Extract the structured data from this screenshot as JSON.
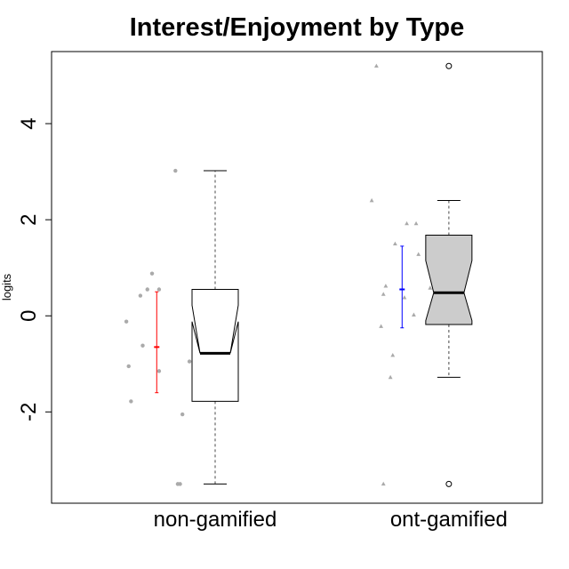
{
  "chart_data": {
    "type": "box",
    "title": "Interest/Enjoyment by Type",
    "xlabel": "",
    "ylabel": "logits",
    "ylim": [
      -3.9,
      5.5
    ],
    "yticks": [
      -2,
      0,
      2,
      4
    ],
    "categories": [
      "non-gamified",
      "ont-gamified"
    ],
    "boxes": [
      {
        "name": "non-gamified",
        "min": -3.5,
        "q1": -1.78,
        "median": -0.78,
        "q3": 0.55,
        "max": 3.02,
        "notch_low": -0.12,
        "notch_high": 0.22,
        "fill": "#ffffff",
        "outliers": []
      },
      {
        "name": "ont-gamified",
        "min": -1.28,
        "q1": -0.18,
        "median": 0.48,
        "q3": 1.68,
        "max": 2.4,
        "notch_low": -0.1,
        "notch_high": 1.15,
        "fill": "#cccccc",
        "outliers": [
          -3.5,
          5.2
        ]
      }
    ],
    "jitter_points": [
      {
        "group": "non-gamified",
        "marker": "circle",
        "color": "#aaaaaa",
        "points": [
          {
            "x": 0.53,
            "y": 3.02
          },
          {
            "x": 0.43,
            "y": 0.88
          },
          {
            "x": 0.41,
            "y": 0.55
          },
          {
            "x": 0.46,
            "y": 0.55
          },
          {
            "x": 0.38,
            "y": 0.42
          },
          {
            "x": 0.32,
            "y": -0.12
          },
          {
            "x": 0.39,
            "y": -0.62
          },
          {
            "x": 0.59,
            "y": -0.95
          },
          {
            "x": 0.33,
            "y": -1.05
          },
          {
            "x": 0.46,
            "y": -1.15
          },
          {
            "x": 0.34,
            "y": -1.78
          },
          {
            "x": 0.56,
            "y": -2.05
          },
          {
            "x": 0.54,
            "y": -3.5
          },
          {
            "x": 0.55,
            "y": -3.5
          }
        ]
      },
      {
        "group": "ont-gamified",
        "marker": "triangle",
        "color": "#aaaaaa",
        "points": [
          {
            "x": 1.39,
            "y": 5.2
          },
          {
            "x": 1.37,
            "y": 2.4
          },
          {
            "x": 1.52,
            "y": 1.92
          },
          {
            "x": 1.56,
            "y": 1.92
          },
          {
            "x": 1.47,
            "y": 1.5
          },
          {
            "x": 1.57,
            "y": 1.28
          },
          {
            "x": 1.43,
            "y": 0.62
          },
          {
            "x": 1.62,
            "y": 0.58
          },
          {
            "x": 1.42,
            "y": 0.45
          },
          {
            "x": 1.51,
            "y": 0.38
          },
          {
            "x": 1.64,
            "y": 0.15
          },
          {
            "x": 1.55,
            "y": 0.02
          },
          {
            "x": 1.41,
            "y": -0.22
          },
          {
            "x": 1.46,
            "y": -0.82
          },
          {
            "x": 1.45,
            "y": -1.28
          },
          {
            "x": 1.42,
            "y": -3.5
          }
        ]
      }
    ],
    "error_bars": [
      {
        "group": "non-gamified",
        "x": 0.45,
        "mean": -0.65,
        "low": -1.6,
        "high": 0.5,
        "color": "#ff0000"
      },
      {
        "group": "ont-gamified",
        "x": 1.5,
        "mean": 0.55,
        "low": -0.25,
        "high": 1.45,
        "color": "#0000ff"
      }
    ],
    "box_x": [
      0.7,
      1.7
    ],
    "xlim": [
      0.0,
      2.1
    ]
  }
}
